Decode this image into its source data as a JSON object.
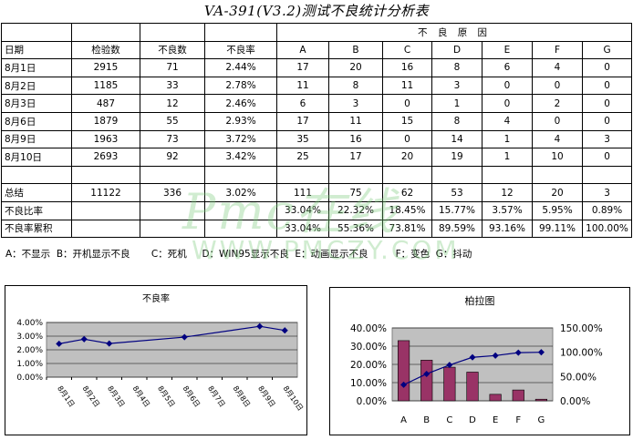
{
  "title": "VA-391(V3.2)测试不良统计分析表",
  "table": {
    "cause_header": "不 良 原 因",
    "columns": [
      "日期",
      "检验数",
      "不良数",
      "不良率",
      "A",
      "B",
      "C",
      "D",
      "E",
      "F",
      "G"
    ],
    "rows": [
      [
        "8月1日",
        "2915",
        "71",
        "2.44%",
        "17",
        "20",
        "16",
        "8",
        "6",
        "4",
        "0"
      ],
      [
        "8月2日",
        "1185",
        "33",
        "2.78%",
        "11",
        "8",
        "11",
        "3",
        "0",
        "0",
        "0"
      ],
      [
        "8月3日",
        "487",
        "12",
        "2.46%",
        "6",
        "3",
        "0",
        "1",
        "0",
        "2",
        "0"
      ],
      [
        "8月6日",
        "1879",
        "55",
        "2.93%",
        "17",
        "11",
        "15",
        "8",
        "4",
        "0",
        "0"
      ],
      [
        "8月9日",
        "1963",
        "73",
        "3.72%",
        "35",
        "16",
        "0",
        "14",
        "1",
        "4",
        "3"
      ],
      [
        "8月10日",
        "2693",
        "92",
        "3.42%",
        "25",
        "17",
        "20",
        "19",
        "1",
        "10",
        "0"
      ]
    ],
    "total_row": [
      "总结",
      "11122",
      "336",
      "3.02%",
      "111",
      "75",
      "62",
      "53",
      "12",
      "20",
      "3"
    ],
    "ratio_row": [
      "不良比率",
      "",
      "",
      "",
      "33.04%",
      "22.32%",
      "18.45%",
      "15.77%",
      "3.57%",
      "5.95%",
      "0.89%"
    ],
    "cumulative_row": [
      "不良率累积",
      "",
      "",
      "",
      "33.04%",
      "55.36%",
      "73.81%",
      "89.59%",
      "93.16%",
      "99.11%",
      "100.00%"
    ]
  },
  "legend_text": "A：不显示  B：开机显示不良       C：死机     D：WIN95显示不良  E：动画显示不良         F：变色  G：抖动",
  "watermark": {
    "script": "Pmc在线",
    "url": "WWW.PMCZY.COM"
  },
  "colors": {
    "line": "#000080",
    "bar": "#993366",
    "plot_bg": "#c0c0c0",
    "watermark": "#78c878"
  },
  "chart_data": [
    {
      "type": "line",
      "title": "不良率",
      "categories": [
        "8月1日",
        "8月2日",
        "8月3日",
        "8月4日",
        "8月5日",
        "8月6日",
        "8月7日",
        "8月8日",
        "8月9日",
        "8月10日"
      ],
      "series": [
        {
          "values": [
            2.44,
            2.78,
            2.46,
            null,
            null,
            2.93,
            null,
            null,
            3.72,
            3.42
          ]
        }
      ],
      "ylim": [
        0,
        4
      ],
      "yticks": [
        "0.00%",
        "1.00%",
        "2.00%",
        "3.00%",
        "4.00%"
      ],
      "grid": true
    },
    {
      "type": "bar",
      "title": "柏拉图",
      "categories": [
        "A",
        "B",
        "C",
        "D",
        "E",
        "F",
        "G"
      ],
      "bar_values": [
        33.04,
        22.32,
        18.45,
        15.77,
        3.57,
        5.95,
        0.89
      ],
      "line_values": [
        33.04,
        55.36,
        73.81,
        89.59,
        93.16,
        99.11,
        100.0
      ],
      "ylim_left": [
        0,
        40
      ],
      "ylim_right": [
        0,
        150
      ],
      "yticks_left": [
        "0.00%",
        "10.00%",
        "20.00%",
        "30.00%",
        "40.00%"
      ],
      "yticks_right": [
        "0.00%",
        "50.00%",
        "100.00%",
        "150.00%"
      ],
      "grid": true
    }
  ]
}
